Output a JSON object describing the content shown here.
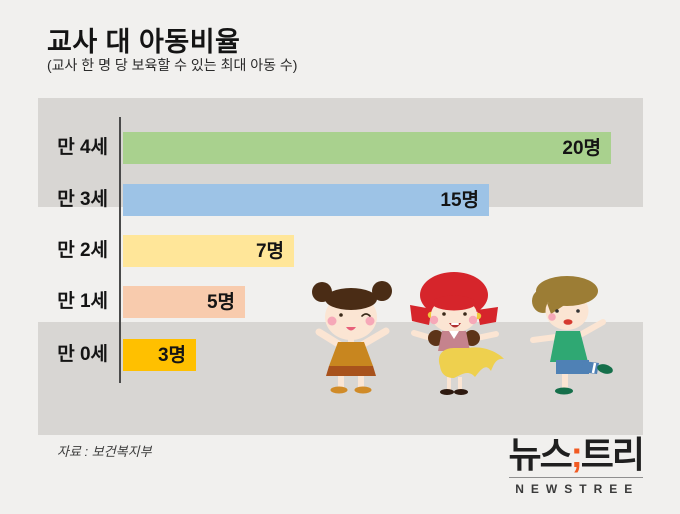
{
  "header": {
    "title": "교사 대 아동비율",
    "subtitle": "(교사 한 명 당 보육할 수 있는 최대 아동 수)"
  },
  "chart_data": {
    "type": "bar",
    "orientation": "horizontal",
    "title": "교사 대 아동비율",
    "subtitle": "(교사 한 명 당 보육할 수 있는 최대 아동 수)",
    "categories": [
      "만 4세",
      "만 3세",
      "만 2세",
      "만 1세",
      "만 0세"
    ],
    "values": [
      20,
      15,
      7,
      5,
      3
    ],
    "value_labels": [
      "20명",
      "15명",
      "7명",
      "5명",
      "3명"
    ],
    "unit": "명",
    "xlim": [
      0,
      20
    ],
    "bar_colors": [
      "#a9d18e",
      "#9dc3e6",
      "#ffe699",
      "#f8cbad",
      "#ffc000"
    ],
    "stripe_color": "#d8d6d3",
    "axis_color": "#4a4a4a",
    "grid": false,
    "legend": "none"
  },
  "footer": {
    "source": "자료 : 보건복지부"
  },
  "logo": {
    "kr_left": "뉴스",
    "separator": ";",
    "kr_right": "트리",
    "english": "NEWSTREE",
    "accent_color": "#f15a22",
    "text_color": "#1f1f1f"
  },
  "illustration": {
    "description": "three cartoon children: girl with brown hair buns in orange dress, girl with red pigtails in yellow skirt, boy in green shirt and blue shorts",
    "palette": {
      "skin": "#fbe5d3",
      "cheek_pink": "#f6a8b8",
      "hair_brown": "#4a2c15",
      "hair_red": "#d6252b",
      "hair_tan": "#9c7d35",
      "dress_orange": "#c8861f",
      "dress_hem": "#a8521c",
      "shoe_orange": "#d08b28",
      "sleeve_brown": "#5d3418",
      "bodice_pink": "#c5838d",
      "skirt_yellow": "#eed04e",
      "tie_yellow": "#f0c93c",
      "shoe_black": "#2e1a10",
      "shirt_green": "#2fa873",
      "shorts_blue": "#4f81b5",
      "shoe_green": "#156f4a"
    }
  }
}
